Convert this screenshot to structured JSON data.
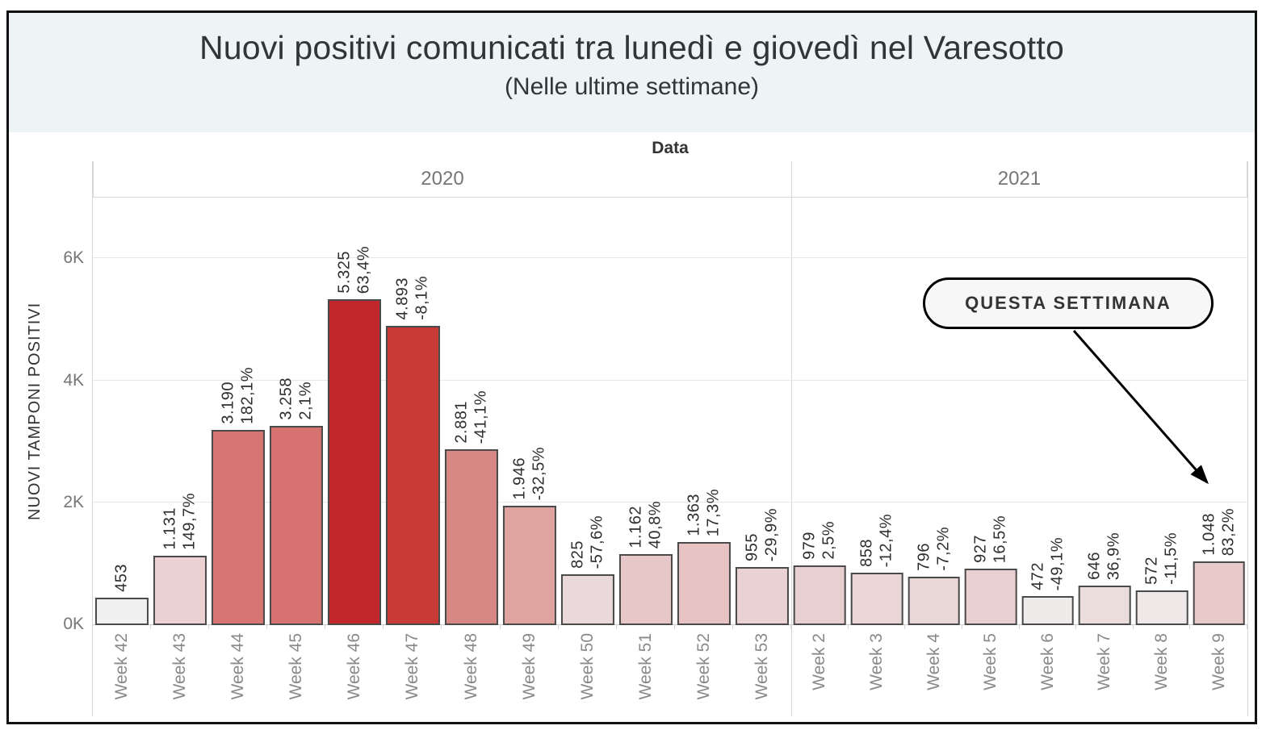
{
  "style_colors": {
    "title_band_bg": "#edf4f5",
    "bar_border": "#4a4a4a",
    "max_intensity_red": "#c2282b",
    "grid_line": "#e7e7e7",
    "pane_line": "#d6d6d6",
    "tick_text": "#767676",
    "week_label_text": "#8a8a8a"
  },
  "chart_data": {
    "type": "bar",
    "title": "Nuovi positivi comunicati tra lunedì e giovedì nel Varesotto",
    "subtitle": "(Nelle ultime settimane)",
    "x_header": "Data",
    "ylabel": "NUOVI TAMPONI POSITIVI",
    "yticks": [
      "0K",
      "2K",
      "4K",
      "6K"
    ],
    "ylim": [
      0,
      7000
    ],
    "grid": true,
    "legend": "none",
    "annotation": {
      "label": "QUESTA SETTIMANA",
      "points_to": "Week 9"
    },
    "panes": [
      {
        "year": "2020",
        "bars": [
          {
            "week": "Week 42",
            "value": 453,
            "value_label": "453",
            "pct_change_label": "",
            "color": "#f0f0f0"
          },
          {
            "week": "Week 43",
            "value": 1131,
            "value_label": "1.131",
            "pct_change_label": "149,7%",
            "color": "#ecd1d3"
          },
          {
            "week": "Week 44",
            "value": 3190,
            "value_label": "3.190",
            "pct_change_label": "182,1%",
            "color": "#d77573"
          },
          {
            "week": "Week 45",
            "value": 3258,
            "value_label": "3.258",
            "pct_change_label": "2,1%",
            "color": "#d67270"
          },
          {
            "week": "Week 46",
            "value": 5325,
            "value_label": "5.325",
            "pct_change_label": "63,4%",
            "color": "#c2282b"
          },
          {
            "week": "Week 47",
            "value": 4893,
            "value_label": "4.893",
            "pct_change_label": "-8,1%",
            "color": "#c73a36"
          },
          {
            "week": "Week 48",
            "value": 2881,
            "value_label": "2.881",
            "pct_change_label": "-41,1%",
            "color": "#d88884"
          },
          {
            "week": "Week 49",
            "value": 1946,
            "value_label": "1.946",
            "pct_change_label": "-32,5%",
            "color": "#dfa3a0"
          },
          {
            "week": "Week 50",
            "value": 825,
            "value_label": "825",
            "pct_change_label": "-57,6%",
            "color": "#ead9da"
          },
          {
            "week": "Week 51",
            "value": 1162,
            "value_label": "1.162",
            "pct_change_label": "40,8%",
            "color": "#e8c7c8"
          },
          {
            "week": "Week 52",
            "value": 1363,
            "value_label": "1.363",
            "pct_change_label": "17,3%",
            "color": "#e7c3c4"
          },
          {
            "week": "Week 53",
            "value": 955,
            "value_label": "955",
            "pct_change_label": "-29,9%",
            "color": "#ead2d3"
          }
        ]
      },
      {
        "year": "2021",
        "bars": [
          {
            "week": "Week 2",
            "value": 979,
            "value_label": "979",
            "pct_change_label": "2,5%",
            "color": "#e9d0d0"
          },
          {
            "week": "Week 3",
            "value": 858,
            "value_label": "858",
            "pct_change_label": "-12,4%",
            "color": "#ead6d6"
          },
          {
            "week": "Week 4",
            "value": 796,
            "value_label": "796",
            "pct_change_label": "-7,2%",
            "color": "#ead8d8"
          },
          {
            "week": "Week 5",
            "value": 927,
            "value_label": "927",
            "pct_change_label": "16,5%",
            "color": "#e9d1d1"
          },
          {
            "week": "Week 6",
            "value": 472,
            "value_label": "472",
            "pct_change_label": "-49,1%",
            "color": "#f0ebeb"
          },
          {
            "week": "Week 7",
            "value": 646,
            "value_label": "646",
            "pct_change_label": "36,9%",
            "color": "#ecdddd"
          },
          {
            "week": "Week 8",
            "value": 572,
            "value_label": "572",
            "pct_change_label": "-11,5%",
            "color": "#efe8e8"
          },
          {
            "week": "Week 9",
            "value": 1048,
            "value_label": "1.048",
            "pct_change_label": "83,2%",
            "color": "#e8caca"
          }
        ]
      }
    ]
  }
}
